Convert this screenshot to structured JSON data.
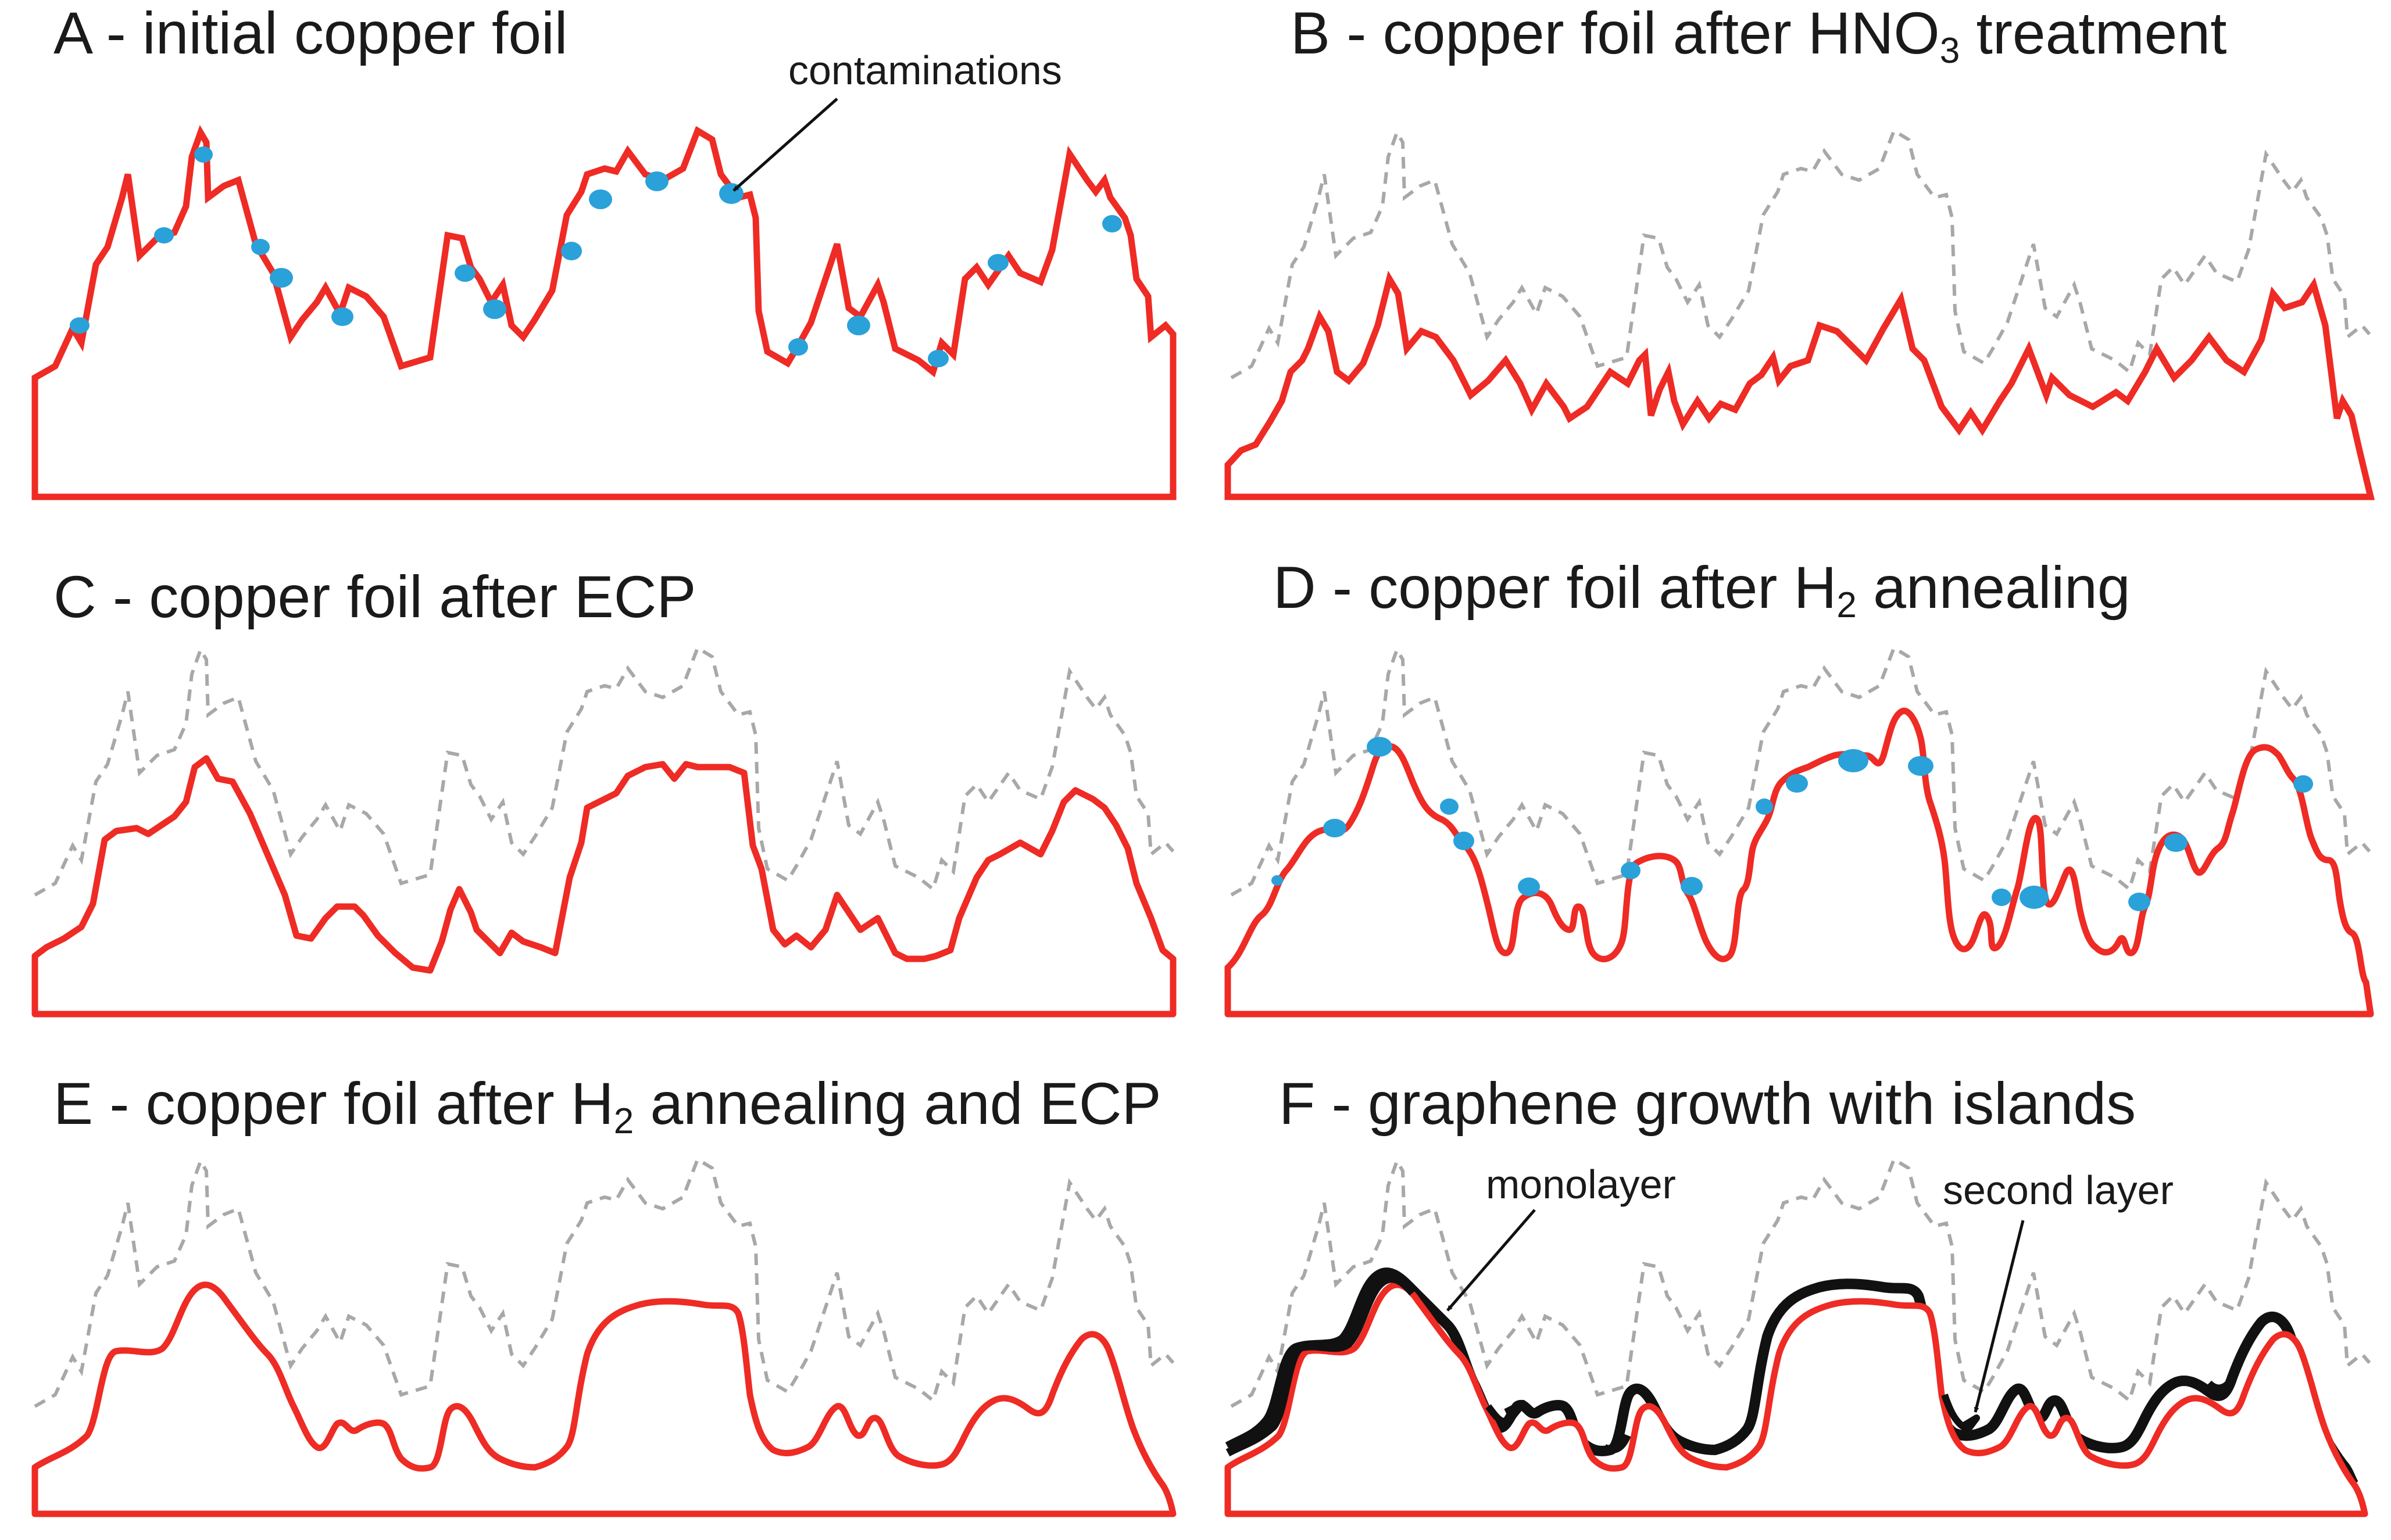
{
  "figure": {
    "panels": [
      {
        "id": "A",
        "title": "A - initial copper foil",
        "sub": "",
        "title_tail": ""
      },
      {
        "id": "B",
        "title": "B - copper foil after HNO",
        "sub": "3",
        "title_tail": " treatment"
      },
      {
        "id": "C",
        "title": "C - copper foil after ECP",
        "sub": "",
        "title_tail": ""
      },
      {
        "id": "D",
        "title": "D - copper foil after H",
        "sub": "2",
        "title_tail": " annealing"
      },
      {
        "id": "E",
        "title": "E - copper foil after H",
        "sub": "2",
        "title_tail": " annealing and ECP"
      },
      {
        "id": "F",
        "title": "F - graphene growth with islands",
        "sub": "",
        "title_tail": ""
      }
    ],
    "annotations": {
      "contaminations": "contaminations",
      "monolayer": "monolayer",
      "second_layer": "second layer"
    },
    "colors": {
      "copper": "#ee2b24",
      "contamination": "#2aa1d9",
      "reference_profile": "#a8a8a8",
      "graphene": "#111111",
      "text": "#1a1a1a"
    }
  }
}
